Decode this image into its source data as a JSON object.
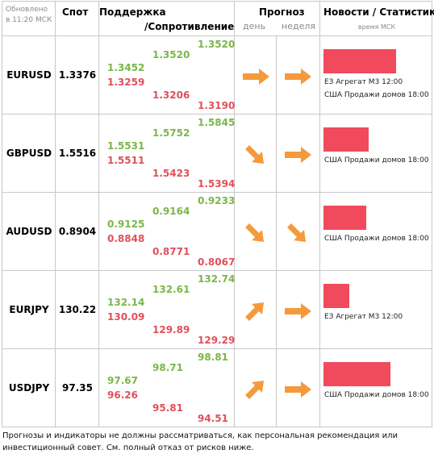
{
  "header": {
    "updated": "Обновлено в 11:20 МСК",
    "spot": "Спот",
    "support": "Поддержка",
    "resistance": "/Сопротивление",
    "forecast": "Прогноз",
    "day": "день",
    "week": "неделя",
    "news": "Новости / Статистика",
    "news_time": "время МСК"
  },
  "colors": {
    "support": "#7ab648",
    "resistance": "#e0505a",
    "arrow": "#f59a3c",
    "news_bar": "#f04a5c",
    "border": "#c8c8c8"
  },
  "rows": [
    {
      "pair": "EURUSD",
      "spot": "1.3376",
      "s1": "1.3452",
      "r1": "1.3259",
      "s2": "1.3520",
      "r2": "1.3206",
      "s3": "1.3520",
      "r3": "1.3190",
      "day_icon": "arrow-right-icon",
      "week_icon": "arrow-right-icon",
      "news_level": 0.64,
      "news": [
        "ЕЗ Агрегат М3 12:00",
        "США Продажи домов 18:00"
      ]
    },
    {
      "pair": "GBPUSD",
      "spot": "1.5516",
      "s1": "1.5531",
      "r1": "1.5511",
      "s2": "1.5752",
      "r2": "1.5423",
      "s3": "1.5845",
      "r3": "1.5394",
      "day_icon": "arrow-down-right-icon",
      "week_icon": "arrow-right-icon",
      "news_level": 0.4,
      "news": [
        "США Продажи домов 18:00"
      ]
    },
    {
      "pair": "AUDUSD",
      "spot": "0.8904",
      "s1": "0.9125",
      "r1": "0.8848",
      "s2": "0.9164",
      "r2": "0.8771",
      "s3": "0.9233",
      "r3": "0.8067",
      "day_icon": "arrow-down-right-icon",
      "week_icon": "arrow-down-right-icon",
      "news_level": 0.38,
      "news": [
        "США Продажи домов 18:00"
      ]
    },
    {
      "pair": "EURJPY",
      "spot": "130.22",
      "s1": "132.14",
      "r1": "130.09",
      "s2": "132.61",
      "r2": "129.89",
      "s3": "132.74",
      "r3": "129.29",
      "day_icon": "arrow-up-right-icon",
      "week_icon": "arrow-right-icon",
      "news_level": 0.23,
      "news": [
        "ЕЗ Агрегат М3 12:00"
      ]
    },
    {
      "pair": "USDJPY",
      "spot": "97.35",
      "s1": "97.67",
      "r1": "96.26",
      "s2": "98.71",
      "r2": "95.81",
      "s3": "98.81",
      "r3": "94.51",
      "day_icon": "arrow-up-right-icon",
      "week_icon": "arrow-right-icon",
      "news_level": 0.59,
      "news": [
        "США Продажи домов 18:00"
      ]
    }
  ],
  "footer": "Прогнозы и индикаторы не должны рассматриваться, как персональная рекомендация или инвестиционный совет. См. полный отказ от рисков ниже."
}
